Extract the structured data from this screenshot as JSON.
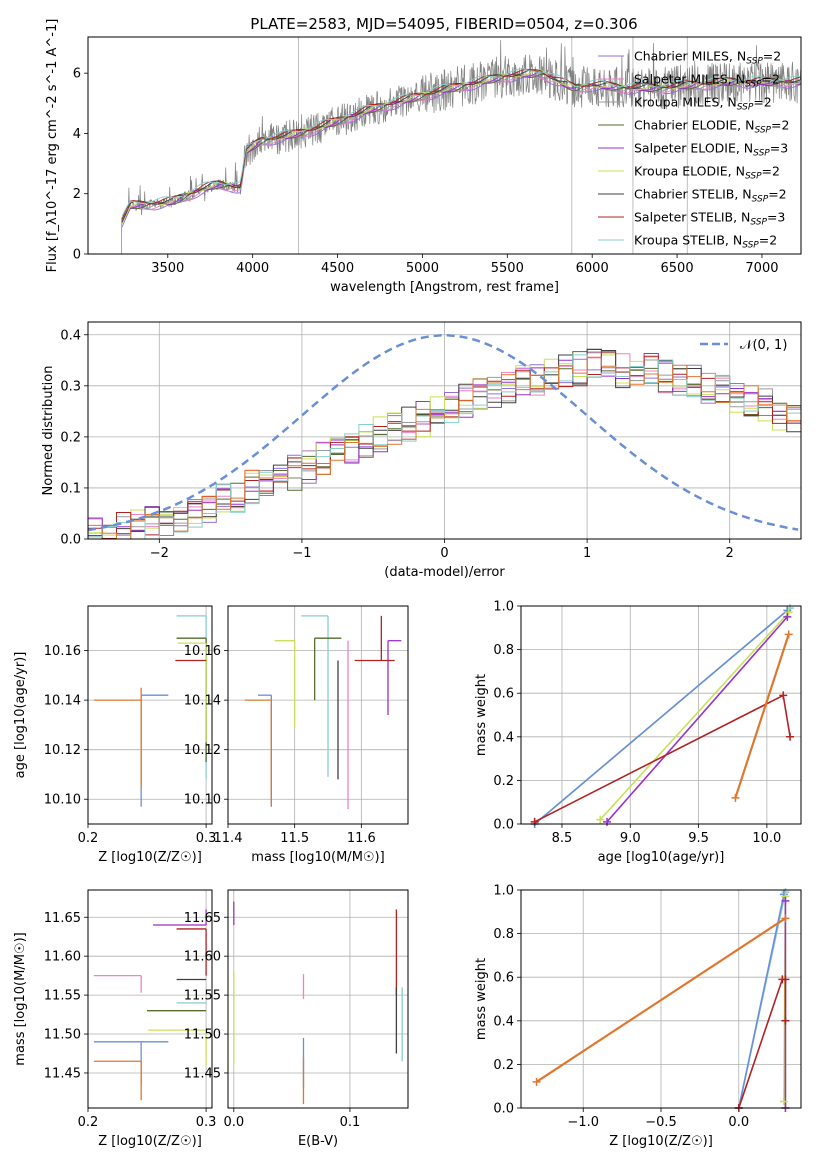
{
  "figure_title": "PLATE=2583, MJD=54095, FIBERID=0504, z=0.306",
  "colors": {
    "chabrier_miles": "#9370db",
    "salpeter_miles": "#ee82c8",
    "kroupa_miles": "#9b9b9b",
    "chabrier_elodie": "#556b2f",
    "salpeter_elodie": "#9932cc",
    "kroupa_elodie": "#c8e05a",
    "chabrier_stelib": "#404040",
    "salpeter_stelib": "#b22222",
    "kroupa_stelib": "#87cecb",
    "blue": "#6a8fd8",
    "orange": "#e0772e",
    "green": "#4e8a4e",
    "data_grey": "#808080"
  },
  "chart_data": [
    {
      "id": "spectrum",
      "type": "line",
      "xlabel": "wavelength [Angstrom, rest frame]",
      "ylabel": "Flux [f_λ10^-17 erg cm^-2 s^-1 A^-1]",
      "xlim": [
        3030,
        7230
      ],
      "ylim": [
        0,
        7.2
      ],
      "xticks": [
        3500,
        4000,
        4500,
        5000,
        5500,
        6000,
        6500,
        7000
      ],
      "yticks": [
        0,
        2,
        4,
        6
      ],
      "grid_x": [
        4270,
        5880,
        6240,
        6560
      ],
      "legend_position": "upper right",
      "legend": [
        {
          "label": "Chabrier MILES, N_SSP=2",
          "color_key": "chabrier_miles"
        },
        {
          "label": "Salpeter MILES, N_SSP=2",
          "color_key": "salpeter_miles"
        },
        {
          "label": "Kroupa MILES, N_SSP=2",
          "color_key": "kroupa_miles"
        },
        {
          "label": "Chabrier ELODIE, N_SSP=2",
          "color_key": "chabrier_elodie"
        },
        {
          "label": "Salpeter ELODIE, N_SSP=3",
          "color_key": "salpeter_elodie"
        },
        {
          "label": "Kroupa ELODIE, N_SSP=2",
          "color_key": "kroupa_elodie"
        },
        {
          "label": "Chabrier STELIB, N_SSP=2",
          "color_key": "chabrier_stelib"
        },
        {
          "label": "Salpeter STELIB, N_SSP=3",
          "color_key": "salpeter_stelib"
        },
        {
          "label": "Kroupa STELIB, N_SSP=2",
          "color_key": "kroupa_stelib"
        }
      ],
      "continuum_anchors": [
        [
          3220,
          0.95
        ],
        [
          3280,
          1.6
        ],
        [
          3400,
          1.65
        ],
        [
          3520,
          1.72
        ],
        [
          3620,
          1.95
        ],
        [
          3700,
          2.15
        ],
        [
          3800,
          2.3
        ],
        [
          3930,
          2.2
        ],
        [
          3960,
          3.4
        ],
        [
          4050,
          3.75
        ],
        [
          4200,
          3.9
        ],
        [
          4340,
          4.1
        ],
        [
          4500,
          4.4
        ],
        [
          4700,
          4.8
        ],
        [
          4900,
          5.1
        ],
        [
          5100,
          5.4
        ],
        [
          5300,
          5.65
        ],
        [
          5500,
          5.9
        ],
        [
          5700,
          6.0
        ],
        [
          5850,
          5.6
        ],
        [
          5900,
          5.5
        ],
        [
          6000,
          5.6
        ],
        [
          6200,
          5.5
        ],
        [
          6400,
          5.5
        ],
        [
          6600,
          5.6
        ],
        [
          6800,
          5.7
        ],
        [
          7000,
          5.7
        ],
        [
          7230,
          5.7
        ]
      ]
    },
    {
      "id": "residuals",
      "type": "histogram",
      "xlabel": "(data-model)/error",
      "ylabel": "Normed distribution",
      "xlim": [
        -2.5,
        2.5
      ],
      "ylim": [
        0,
        0.425
      ],
      "xticks": [
        -2,
        -1,
        0,
        1,
        2
      ],
      "yticks": [
        0.0,
        0.1,
        0.2,
        0.3,
        0.4
      ],
      "legend": [
        {
          "label": "N(0,1)",
          "color_key": "blue",
          "style": "dashed"
        }
      ],
      "legend_position": "upper right",
      "bin_edges_start": -2.5,
      "bin_width": 0.1,
      "base_heights": [
        0.018,
        0.02,
        0.022,
        0.025,
        0.03,
        0.035,
        0.045,
        0.055,
        0.065,
        0.075,
        0.085,
        0.1,
        0.11,
        0.12,
        0.13,
        0.14,
        0.155,
        0.17,
        0.18,
        0.19,
        0.205,
        0.215,
        0.225,
        0.235,
        0.245,
        0.255,
        0.27,
        0.28,
        0.29,
        0.3,
        0.31,
        0.315,
        0.325,
        0.33,
        0.335,
        0.34,
        0.335,
        0.33,
        0.325,
        0.33,
        0.32,
        0.315,
        0.31,
        0.3,
        0.29,
        0.28,
        0.27,
        0.26,
        0.245,
        0.23
      ]
    },
    {
      "id": "age_vs_Z",
      "type": "errorbar",
      "xlabel": "Z [log10(Z/Z☉)]",
      "ylabel": "age [log10(age/yr)]",
      "xlim": [
        0.2,
        0.305
      ],
      "ylim": [
        10.09,
        10.178
      ],
      "xticks": [
        0.2,
        0.3
      ],
      "yticks": [
        10.1,
        10.12,
        10.14,
        10.16
      ],
      "points": [
        {
          "x": 0.245,
          "y": 10.142,
          "xerr": [
            0.0,
            0.023
          ],
          "yerr": [
            0.045,
            0.0
          ],
          "c": "blue"
        },
        {
          "x": 0.245,
          "y": 10.14,
          "xerr": [
            0.04,
            0.0
          ],
          "yerr": [
            0.035,
            0.005
          ],
          "c": "orange"
        },
        {
          "x": 0.3,
          "y": 10.174,
          "xerr": [
            0.025,
            0.0
          ],
          "yerr": [
            0.066,
            0.0
          ],
          "c": "kroupa_stelib"
        },
        {
          "x": 0.3,
          "y": 10.165,
          "xerr": [
            0.025,
            0.0
          ],
          "yerr": [
            0.05,
            0.0
          ],
          "c": "chabrier_elodie"
        },
        {
          "x": 0.3,
          "y": 10.163,
          "xerr": [
            0.024,
            0.0
          ],
          "yerr": [
            0.04,
            0.0
          ],
          "c": "kroupa_elodie"
        },
        {
          "x": 0.3,
          "y": 10.156,
          "xerr": [
            0.026,
            0.0
          ],
          "yerr": [
            0.0,
            0.0
          ],
          "c": "salpeter_stelib"
        }
      ]
    },
    {
      "id": "age_vs_mass",
      "type": "errorbar",
      "xlabel": "mass [log10(M/M☉)]",
      "ylabel": "",
      "xlim": [
        11.4,
        11.67
      ],
      "ylim": [
        10.09,
        10.178
      ],
      "xticks": [
        11.4,
        11.5,
        11.6
      ],
      "yticks": [
        10.1,
        10.12,
        10.14,
        10.16
      ],
      "points": [
        {
          "x": 11.465,
          "y": 10.142,
          "xerr": [
            0.02,
            0.0
          ],
          "yerr": [
            0.045,
            0.0
          ],
          "c": "blue"
        },
        {
          "x": 11.465,
          "y": 10.14,
          "xerr": [
            0.04,
            0.0
          ],
          "yerr": [
            0.043,
            0.0
          ],
          "c": "orange"
        },
        {
          "x": 11.55,
          "y": 10.174,
          "xerr": [
            0.04,
            0.0
          ],
          "yerr": [
            0.065,
            0.0
          ],
          "c": "kroupa_stelib"
        },
        {
          "x": 11.53,
          "y": 10.165,
          "xerr": [
            0.0,
            0.04
          ],
          "yerr": [
            0.025,
            0.0
          ],
          "c": "chabrier_elodie"
        },
        {
          "x": 11.5,
          "y": 10.164,
          "xerr": [
            0.03,
            0.0
          ],
          "yerr": [
            0.035,
            0.0
          ],
          "c": "kroupa_elodie"
        },
        {
          "x": 11.58,
          "y": 10.164,
          "xerr": [
            0.0,
            0.0
          ],
          "yerr": [
            0.068,
            0.0
          ],
          "c": "salpeter_miles"
        },
        {
          "x": 11.64,
          "y": 10.164,
          "xerr": [
            0.0,
            0.02
          ],
          "yerr": [
            0.03,
            0.0
          ],
          "c": "salpeter_elodie"
        },
        {
          "x": 11.63,
          "y": 10.156,
          "xerr": [
            0.04,
            0.02
          ],
          "yerr": [
            0.0,
            0.018
          ],
          "c": "salpeter_stelib"
        },
        {
          "x": 11.565,
          "y": 10.156,
          "xerr": [
            0.0,
            0.0
          ],
          "yerr": [
            0.048,
            0.0
          ],
          "c": "chabrier_stelib"
        }
      ]
    },
    {
      "id": "massweight_vs_age",
      "type": "line",
      "xlabel": "age [log10(age/yr)]",
      "ylabel": "mass weight",
      "xlim": [
        8.2,
        10.25
      ],
      "ylim": [
        0,
        1.0
      ],
      "xticks": [
        8.5,
        9.0,
        9.5,
        10.0
      ],
      "yticks": [
        0.0,
        0.2,
        0.4,
        0.6,
        0.8,
        1.0
      ],
      "series": [
        {
          "c": "kroupa_stelib",
          "x": [
            8.3,
            10.17
          ],
          "y": [
            0.0,
            0.99
          ]
        },
        {
          "c": "blue",
          "x": [
            8.3,
            10.15
          ],
          "y": [
            0.0,
            0.98
          ]
        },
        {
          "c": "kroupa_elodie",
          "x": [
            8.78,
            10.16
          ],
          "y": [
            0.02,
            0.97
          ]
        },
        {
          "c": "salpeter_elodie",
          "x": [
            8.83,
            10.15
          ],
          "y": [
            0.01,
            0.95
          ]
        },
        {
          "c": "salpeter_stelib",
          "x": [
            8.3,
            10.12,
            10.17
          ],
          "y": [
            0.01,
            0.59,
            0.4
          ]
        },
        {
          "c": "orange",
          "x": [
            9.77,
            10.16
          ],
          "y": [
            0.12,
            0.87
          ]
        }
      ]
    },
    {
      "id": "mass_vs_Z",
      "type": "errorbar",
      "xlabel": "Z [log10(Z/Z☉)]",
      "ylabel": "mass [log10(M/M☉)]",
      "xlim": [
        0.2,
        0.305
      ],
      "ylim": [
        11.405,
        11.685
      ],
      "xticks": [
        0.2,
        0.3
      ],
      "yticks": [
        11.45,
        11.5,
        11.55,
        11.6,
        11.65
      ],
      "points": [
        {
          "x": 0.245,
          "y": 11.49,
          "xerr": [
            0.04,
            0.023
          ],
          "yerr": [
            0.055,
            0.0
          ],
          "c": "blue"
        },
        {
          "x": 0.245,
          "y": 11.465,
          "xerr": [
            0.04,
            0.0
          ],
          "yerr": [
            0.05,
            0.0
          ],
          "c": "orange"
        },
        {
          "x": 0.245,
          "y": 11.575,
          "xerr": [
            0.04,
            0.0
          ],
          "yerr": [
            0.022,
            0.0
          ],
          "c": "salpeter_miles"
        },
        {
          "x": 0.3,
          "y": 11.64,
          "xerr": [
            0.045,
            0.0
          ],
          "yerr": [
            0.0,
            0.02
          ],
          "c": "salpeter_elodie"
        },
        {
          "x": 0.3,
          "y": 11.635,
          "xerr": [
            0.025,
            0.0
          ],
          "yerr": [
            0.06,
            0.0
          ],
          "c": "salpeter_stelib"
        },
        {
          "x": 0.3,
          "y": 11.57,
          "xerr": [
            0.025,
            0.0
          ],
          "yerr": [
            0.0,
            0.0
          ],
          "c": "chabrier_stelib"
        },
        {
          "x": 0.3,
          "y": 11.53,
          "xerr": [
            0.05,
            0.0
          ],
          "yerr": [
            0.0,
            0.0
          ],
          "c": "chabrier_elodie"
        },
        {
          "x": 0.3,
          "y": 11.54,
          "xerr": [
            0.025,
            0.0
          ],
          "yerr": [
            0.0,
            0.0
          ],
          "c": "kroupa_stelib"
        },
        {
          "x": 0.3,
          "y": 11.505,
          "xerr": [
            0.049,
            0.0
          ],
          "yerr": [
            0.045,
            0.0
          ],
          "c": "kroupa_elodie"
        }
      ]
    },
    {
      "id": "mass_vs_EBV",
      "type": "errorbar",
      "xlabel": "E(B-V)",
      "ylabel": "",
      "xlim": [
        -0.005,
        0.15
      ],
      "ylim": [
        11.405,
        11.685
      ],
      "xticks": [
        0.0,
        0.1
      ],
      "yticks": [
        11.45,
        11.5,
        11.55,
        11.6,
        11.65
      ],
      "points": [
        {
          "x": 0.0,
          "y": 11.64,
          "xerr": [
            0,
            0
          ],
          "yerr": [
            0.0,
            0.03
          ],
          "c": "salpeter_elodie"
        },
        {
          "x": 0.0,
          "y": 11.52,
          "xerr": [
            0,
            0
          ],
          "yerr": [
            0.06,
            0.06
          ],
          "c": "kroupa_elodie"
        },
        {
          "x": 0.06,
          "y": 11.475,
          "xerr": [
            0,
            0
          ],
          "yerr": [
            0.045,
            0.02
          ],
          "c": "blue"
        },
        {
          "x": 0.06,
          "y": 11.445,
          "xerr": [
            0,
            0
          ],
          "yerr": [
            0.035,
            0.025
          ],
          "c": "orange"
        },
        {
          "x": 0.06,
          "y": 11.565,
          "xerr": [
            0,
            0
          ],
          "yerr": [
            0.02,
            0.012
          ],
          "c": "salpeter_miles"
        },
        {
          "x": 0.14,
          "y": 11.6,
          "xerr": [
            0,
            0
          ],
          "yerr": [
            0.05,
            0.06
          ],
          "c": "salpeter_stelib"
        },
        {
          "x": 0.14,
          "y": 11.53,
          "xerr": [
            0,
            0
          ],
          "yerr": [
            0.055,
            0.03
          ],
          "c": "chabrier_stelib"
        },
        {
          "x": 0.145,
          "y": 11.51,
          "xerr": [
            0,
            0
          ],
          "yerr": [
            0.045,
            0.05
          ],
          "c": "kroupa_stelib"
        }
      ]
    },
    {
      "id": "massweight_vs_Z",
      "type": "line",
      "xlabel": "Z [log10(Z/Z☉)]",
      "ylabel": "mass weight",
      "xlim": [
        -1.4,
        0.4
      ],
      "ylim": [
        0,
        1.0
      ],
      "xticks": [
        -1.0,
        -0.5,
        0.0
      ],
      "yticks": [
        0.0,
        0.2,
        0.4,
        0.6,
        0.8,
        1.0
      ],
      "series": [
        {
          "c": "kroupa_stelib",
          "x": [
            0.0,
            0.3
          ],
          "y": [
            0.0,
            0.99
          ]
        },
        {
          "c": "blue",
          "x": [
            0.0,
            0.29
          ],
          "y": [
            0.0,
            0.98
          ]
        },
        {
          "c": "kroupa_elodie",
          "x": [
            0.29,
            0.3,
            0.3
          ],
          "y": [
            0.03,
            0.97,
            0.0
          ]
        },
        {
          "c": "salpeter_elodie",
          "x": [
            0.3,
            0.3
          ],
          "y": [
            0.0,
            0.95
          ]
        },
        {
          "c": "salpeter_stelib",
          "x": [
            0.0,
            0.28,
            0.3,
            0.3
          ],
          "y": [
            0.0,
            0.59,
            0.59,
            0.4
          ]
        },
        {
          "c": "orange",
          "x": [
            -1.3,
            0.3
          ],
          "y": [
            0.12,
            0.87
          ]
        }
      ]
    }
  ]
}
